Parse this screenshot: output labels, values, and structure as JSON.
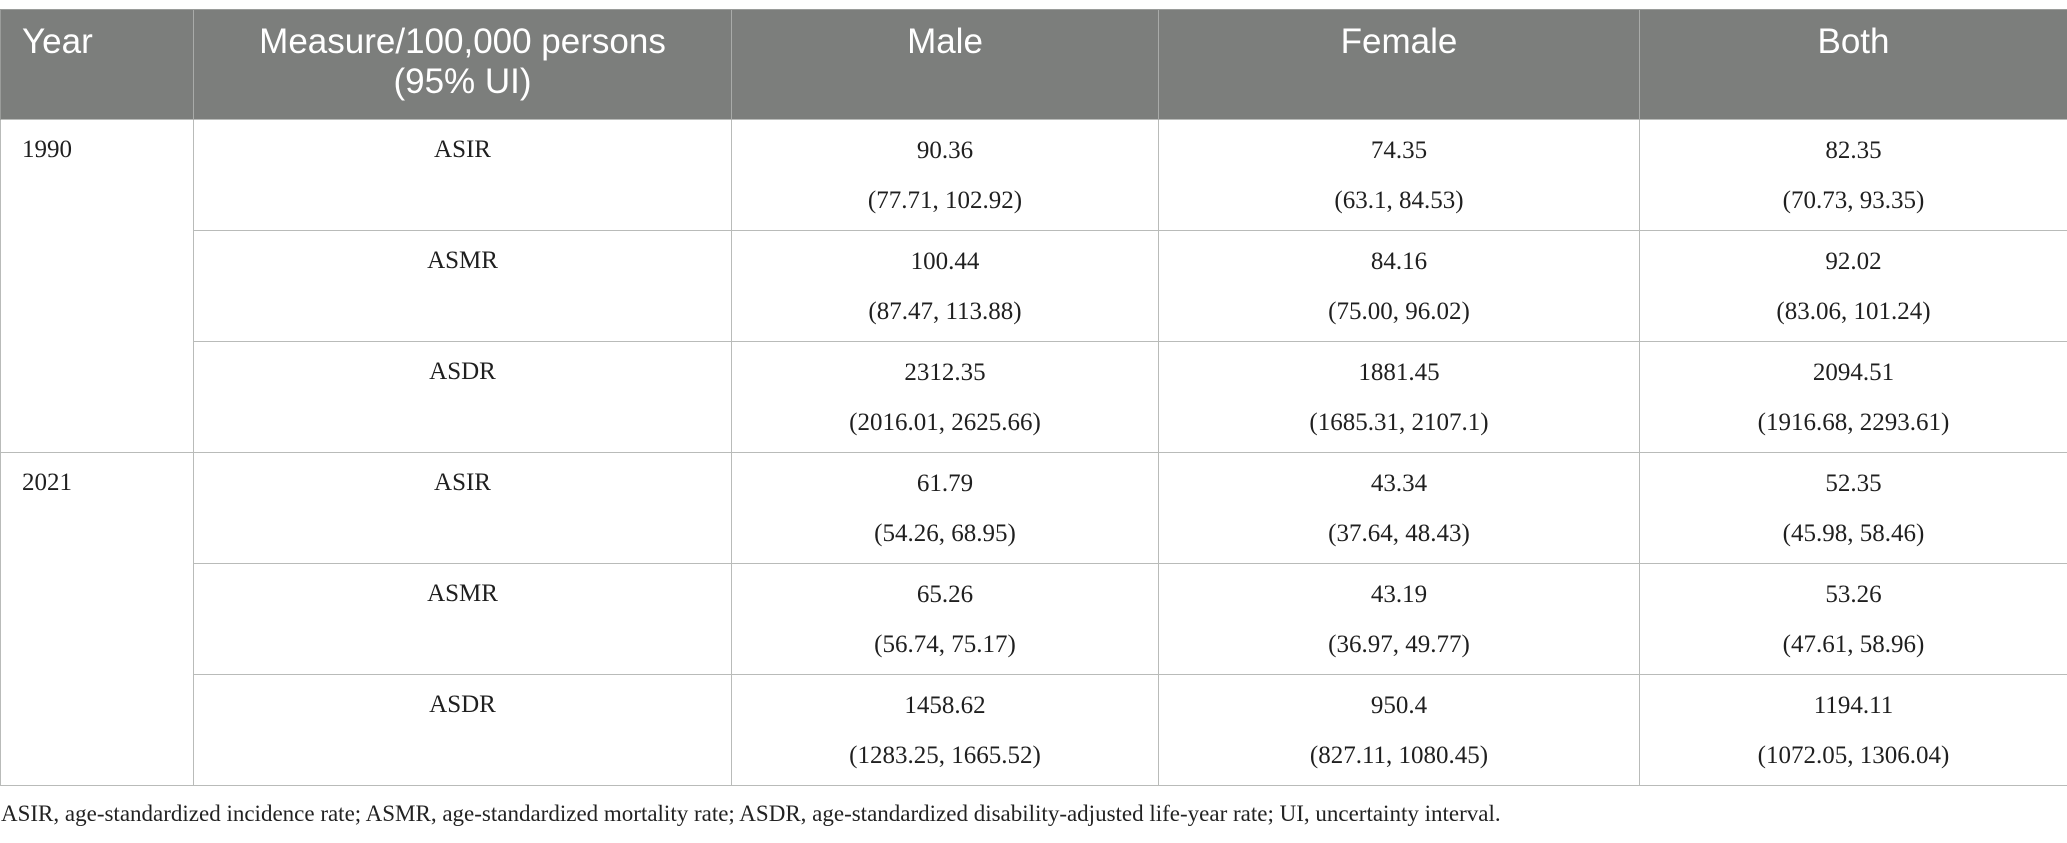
{
  "table": {
    "headers": {
      "year": "Year",
      "measure_line1": "Measure/100,000 persons",
      "measure_line2": "(95% UI)",
      "male": "Male",
      "female": "Female",
      "both": "Both"
    },
    "groups": [
      {
        "year": "1990",
        "rows": [
          {
            "measure": "ASIR",
            "male": {
              "value": "90.36",
              "ui": "(77.71, 102.92)"
            },
            "female": {
              "value": "74.35",
              "ui": "(63.1, 84.53)"
            },
            "both": {
              "value": "82.35",
              "ui": "(70.73, 93.35)"
            }
          },
          {
            "measure": "ASMR",
            "male": {
              "value": "100.44",
              "ui": "(87.47, 113.88)"
            },
            "female": {
              "value": "84.16",
              "ui": "(75.00, 96.02)"
            },
            "both": {
              "value": "92.02",
              "ui": "(83.06, 101.24)"
            }
          },
          {
            "measure": "ASDR",
            "male": {
              "value": "2312.35",
              "ui": "(2016.01, 2625.66)"
            },
            "female": {
              "value": "1881.45",
              "ui": "(1685.31, 2107.1)"
            },
            "both": {
              "value": "2094.51",
              "ui": "(1916.68, 2293.61)"
            }
          }
        ]
      },
      {
        "year": "2021",
        "rows": [
          {
            "measure": "ASIR",
            "male": {
              "value": "61.79",
              "ui": "(54.26, 68.95)"
            },
            "female": {
              "value": "43.34",
              "ui": "(37.64, 48.43)"
            },
            "both": {
              "value": "52.35",
              "ui": "(45.98, 58.46)"
            }
          },
          {
            "measure": "ASMR",
            "male": {
              "value": "65.26",
              "ui": "(56.74, 75.17)"
            },
            "female": {
              "value": "43.19",
              "ui": "(36.97, 49.77)"
            },
            "both": {
              "value": "53.26",
              "ui": "(47.61, 58.96)"
            }
          },
          {
            "measure": "ASDR",
            "male": {
              "value": "1458.62",
              "ui": "(1283.25, 1665.52)"
            },
            "female": {
              "value": "950.4",
              "ui": "(827.11, 1080.45)"
            },
            "both": {
              "value": "1194.11",
              "ui": "(1072.05, 1306.04)"
            }
          }
        ]
      }
    ]
  },
  "footnote": "ASIR, age-standardized incidence rate; ASMR, age-standardized mortality rate; ASDR, age-standardized disability-adjusted life-year rate; UI, uncertainty interval."
}
